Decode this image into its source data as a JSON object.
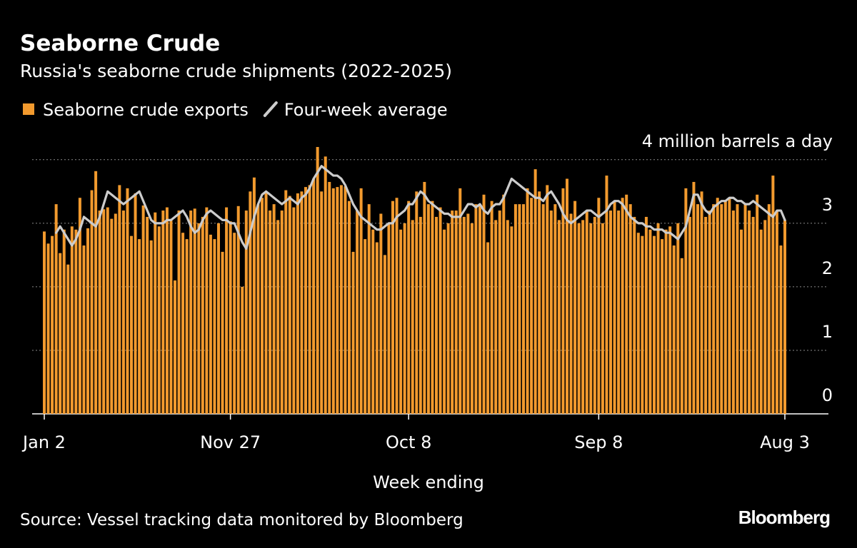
{
  "chart_data": {
    "type": "bar",
    "title": "Seaborne Crude",
    "subtitle": "Russia's seaborne crude shipments (2022-2025)",
    "x_label": "Week ending",
    "source": "Source: Vessel tracking data monitored by Bloomberg",
    "brand": "Bloomberg",
    "categories": [
      "Jan 2",
      null,
      null,
      null,
      null,
      null,
      null,
      null,
      null,
      null,
      null,
      null,
      null,
      null,
      null,
      null,
      null,
      null,
      null,
      null,
      null,
      null,
      null,
      null,
      null,
      null,
      null,
      null,
      null,
      null,
      null,
      null,
      null,
      null,
      null,
      null,
      null,
      null,
      null,
      null,
      null,
      null,
      null,
      null,
      null,
      null,
      null,
      "Nov 27",
      null,
      null,
      null,
      null,
      null,
      null,
      null,
      null,
      null,
      null,
      null,
      null,
      null,
      null,
      null,
      null,
      null,
      null,
      null,
      null,
      null,
      null,
      null,
      null,
      null,
      null,
      null,
      null,
      null,
      null,
      null,
      null,
      null,
      null,
      null,
      null,
      null,
      null,
      null,
      null,
      null,
      null,
      null,
      null,
      "Oct 8",
      null,
      null,
      null,
      null,
      null,
      null,
      null,
      null,
      null,
      null,
      null,
      null,
      null,
      null,
      null,
      null,
      null,
      null,
      null,
      null,
      null,
      null,
      null,
      null,
      null,
      null,
      null,
      null,
      null,
      null,
      null,
      null,
      null,
      null,
      null,
      null,
      null,
      null,
      null,
      null,
      null,
      null,
      null,
      null,
      null,
      null,
      null,
      "Sep 8",
      null,
      null,
      null,
      null,
      null,
      null,
      null,
      null,
      null,
      null,
      null,
      null,
      null,
      null,
      null,
      null,
      null,
      null,
      null,
      null,
      null,
      null,
      null,
      null,
      null,
      null,
      null,
      null,
      null,
      null,
      null,
      null,
      null,
      null,
      null,
      null,
      null,
      null,
      null,
      null,
      null,
      null,
      null,
      null,
      null,
      null,
      "Aug 3"
    ],
    "series": [
      {
        "name": "Seaborne crude exports",
        "color": "#f29a2e",
        "values": [
          2.87,
          2.68,
          2.8,
          3.3,
          2.53,
          2.9,
          2.35,
          2.95,
          2.9,
          3.4,
          2.65,
          2.92,
          3.52,
          3.82,
          3.2,
          3.22,
          3.25,
          3.07,
          3.15,
          3.6,
          3.2,
          3.55,
          2.8,
          3.47,
          2.75,
          3.28,
          3.1,
          2.73,
          3.17,
          2.95,
          3.2,
          3.25,
          3.05,
          2.1,
          3.2,
          2.85,
          2.75,
          3.2,
          3.23,
          3.0,
          3.1,
          3.25,
          2.82,
          2.75,
          3.0,
          2.55,
          3.25,
          3.03,
          2.85,
          3.27,
          2.0,
          3.2,
          3.5,
          3.72,
          3.3,
          3.4,
          3.5,
          3.2,
          3.3,
          3.05,
          3.2,
          3.52,
          3.43,
          3.25,
          3.47,
          3.5,
          3.57,
          3.6,
          3.7,
          4.2,
          3.5,
          4.05,
          3.65,
          3.55,
          3.57,
          3.6,
          3.58,
          3.35,
          2.55,
          3.2,
          3.55,
          2.75,
          3.3,
          2.9,
          2.7,
          3.15,
          2.5,
          3.0,
          3.35,
          3.4,
          2.9,
          3.0,
          3.35,
          3.05,
          3.5,
          3.1,
          3.65,
          3.3,
          3.35,
          3.1,
          3.25,
          2.9,
          3.0,
          3.2,
          3.2,
          3.55,
          3.1,
          3.15,
          3.0,
          3.3,
          3.3,
          3.45,
          2.7,
          3.35,
          3.05,
          3.2,
          3.45,
          3.05,
          2.95,
          3.3,
          3.3,
          3.3,
          3.55,
          3.4,
          3.85,
          3.5,
          3.3,
          3.6,
          3.2,
          3.3,
          3.05,
          3.55,
          3.7,
          3.15,
          3.35,
          3.0,
          3.05,
          3.2,
          3.0,
          3.1,
          3.4,
          3.0,
          3.75,
          3.2,
          3.35,
          3.2,
          3.4,
          3.45,
          3.3,
          3.1,
          2.85,
          2.8,
          3.1,
          2.9,
          2.8,
          3.0,
          2.75,
          2.9,
          2.95,
          2.65,
          3.0,
          2.45,
          3.55,
          3.1,
          3.65,
          3.3,
          3.5,
          3.1,
          3.2,
          3.3,
          3.4,
          3.3,
          3.35,
          3.4,
          3.2,
          3.3,
          2.9,
          3.3,
          3.2,
          3.1,
          3.45,
          2.9,
          3.05,
          3.3,
          3.75,
          3.2,
          2.65,
          3.05
        ]
      },
      {
        "name": "Four-week average",
        "type": "line",
        "color": "#cccccc",
        "values": [
          null,
          null,
          null,
          2.85,
          2.95,
          2.85,
          2.75,
          2.65,
          2.75,
          2.9,
          3.1,
          3.05,
          3.0,
          2.95,
          3.1,
          3.3,
          3.5,
          3.45,
          3.4,
          3.35,
          3.3,
          3.35,
          3.4,
          3.45,
          3.5,
          3.35,
          3.2,
          3.05,
          3.0,
          3.0,
          3.0,
          3.05,
          3.05,
          3.1,
          3.15,
          3.2,
          3.1,
          2.95,
          2.85,
          2.9,
          3.05,
          3.15,
          3.2,
          3.15,
          3.1,
          3.05,
          3.05,
          3.0,
          3.0,
          2.85,
          2.7,
          2.6,
          2.85,
          3.1,
          3.3,
          3.45,
          3.5,
          3.45,
          3.4,
          3.35,
          3.3,
          3.35,
          3.4,
          3.35,
          3.3,
          3.4,
          3.45,
          3.55,
          3.7,
          3.8,
          3.9,
          3.85,
          3.8,
          3.75,
          3.75,
          3.7,
          3.6,
          3.45,
          3.3,
          3.2,
          3.1,
          3.05,
          3.0,
          2.95,
          2.9,
          2.9,
          2.95,
          3.0,
          3.0,
          3.1,
          3.15,
          3.2,
          3.3,
          3.3,
          3.4,
          3.5,
          3.45,
          3.35,
          3.3,
          3.25,
          3.2,
          3.15,
          3.15,
          3.1,
          3.1,
          3.1,
          3.2,
          3.3,
          3.3,
          3.25,
          3.3,
          3.2,
          3.15,
          3.25,
          3.3,
          3.3,
          3.4,
          3.55,
          3.7,
          3.65,
          3.6,
          3.55,
          3.5,
          3.45,
          3.4,
          3.4,
          3.35,
          3.45,
          3.5,
          3.4,
          3.3,
          3.15,
          3.05,
          3.0,
          3.05,
          3.1,
          3.15,
          3.2,
          3.2,
          3.15,
          3.1,
          3.15,
          3.2,
          3.3,
          3.35,
          3.35,
          3.3,
          3.2,
          3.1,
          3.05,
          3.0,
          3.0,
          2.95,
          2.95,
          2.9,
          2.9,
          2.9,
          2.85,
          2.85,
          2.8,
          2.75,
          2.85,
          2.95,
          3.2,
          3.45,
          3.45,
          3.3,
          3.2,
          3.15,
          3.25,
          3.3,
          3.35,
          3.35,
          3.4,
          3.4,
          3.35,
          3.35,
          3.3,
          3.3,
          3.35,
          3.3,
          3.25,
          3.2,
          3.15,
          3.1,
          3.2,
          3.2,
          3.05
        ]
      }
    ],
    "ylim": [
      0,
      4.2
    ],
    "yticks": [
      0,
      1,
      2,
      3,
      {
        "value": 4,
        "label": "4 million barrels a day"
      }
    ],
    "grid": true
  }
}
